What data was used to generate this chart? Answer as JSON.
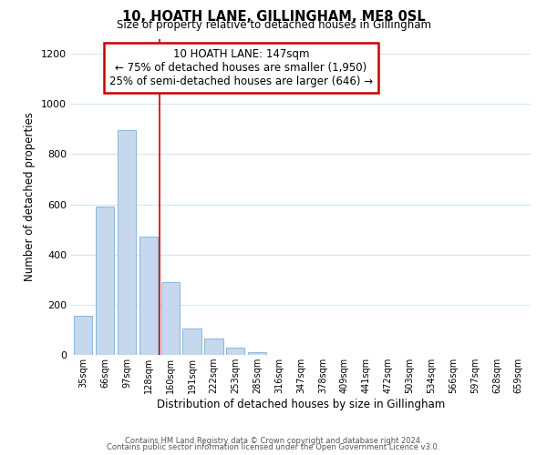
{
  "title": "10, HOATH LANE, GILLINGHAM, ME8 0SL",
  "subtitle": "Size of property relative to detached houses in Gillingham",
  "xlabel": "Distribution of detached houses by size in Gillingham",
  "ylabel": "Number of detached properties",
  "bar_labels": [
    "35sqm",
    "66sqm",
    "97sqm",
    "128sqm",
    "160sqm",
    "191sqm",
    "222sqm",
    "253sqm",
    "285sqm",
    "316sqm",
    "347sqm",
    "378sqm",
    "409sqm",
    "441sqm",
    "472sqm",
    "503sqm",
    "534sqm",
    "566sqm",
    "597sqm",
    "628sqm",
    "659sqm"
  ],
  "bar_values": [
    155,
    590,
    895,
    472,
    290,
    105,
    65,
    28,
    12,
    0,
    0,
    0,
    0,
    0,
    0,
    0,
    0,
    0,
    0,
    0,
    0
  ],
  "bar_color": "#c5d8ed",
  "bar_edge_color": "#7bafd4",
  "annotation_title": "10 HOATH LANE: 147sqm",
  "annotation_line1": "← 75% of detached houses are smaller (1,950)",
  "annotation_line2": "25% of semi-detached houses are larger (646) →",
  "annotation_box_color": "#ffffff",
  "annotation_box_edge_color": "#cc0000",
  "vline_x": 3.5,
  "vline_color": "#cc0000",
  "ylim": [
    0,
    1260
  ],
  "yticks": [
    0,
    200,
    400,
    600,
    800,
    1000,
    1200
  ],
  "footnote1": "Contains HM Land Registry data © Crown copyright and database right 2024.",
  "footnote2": "Contains public sector information licensed under the Open Government Licence v3.0.",
  "bg_color": "#ffffff",
  "grid_color": "#d4e6f5"
}
